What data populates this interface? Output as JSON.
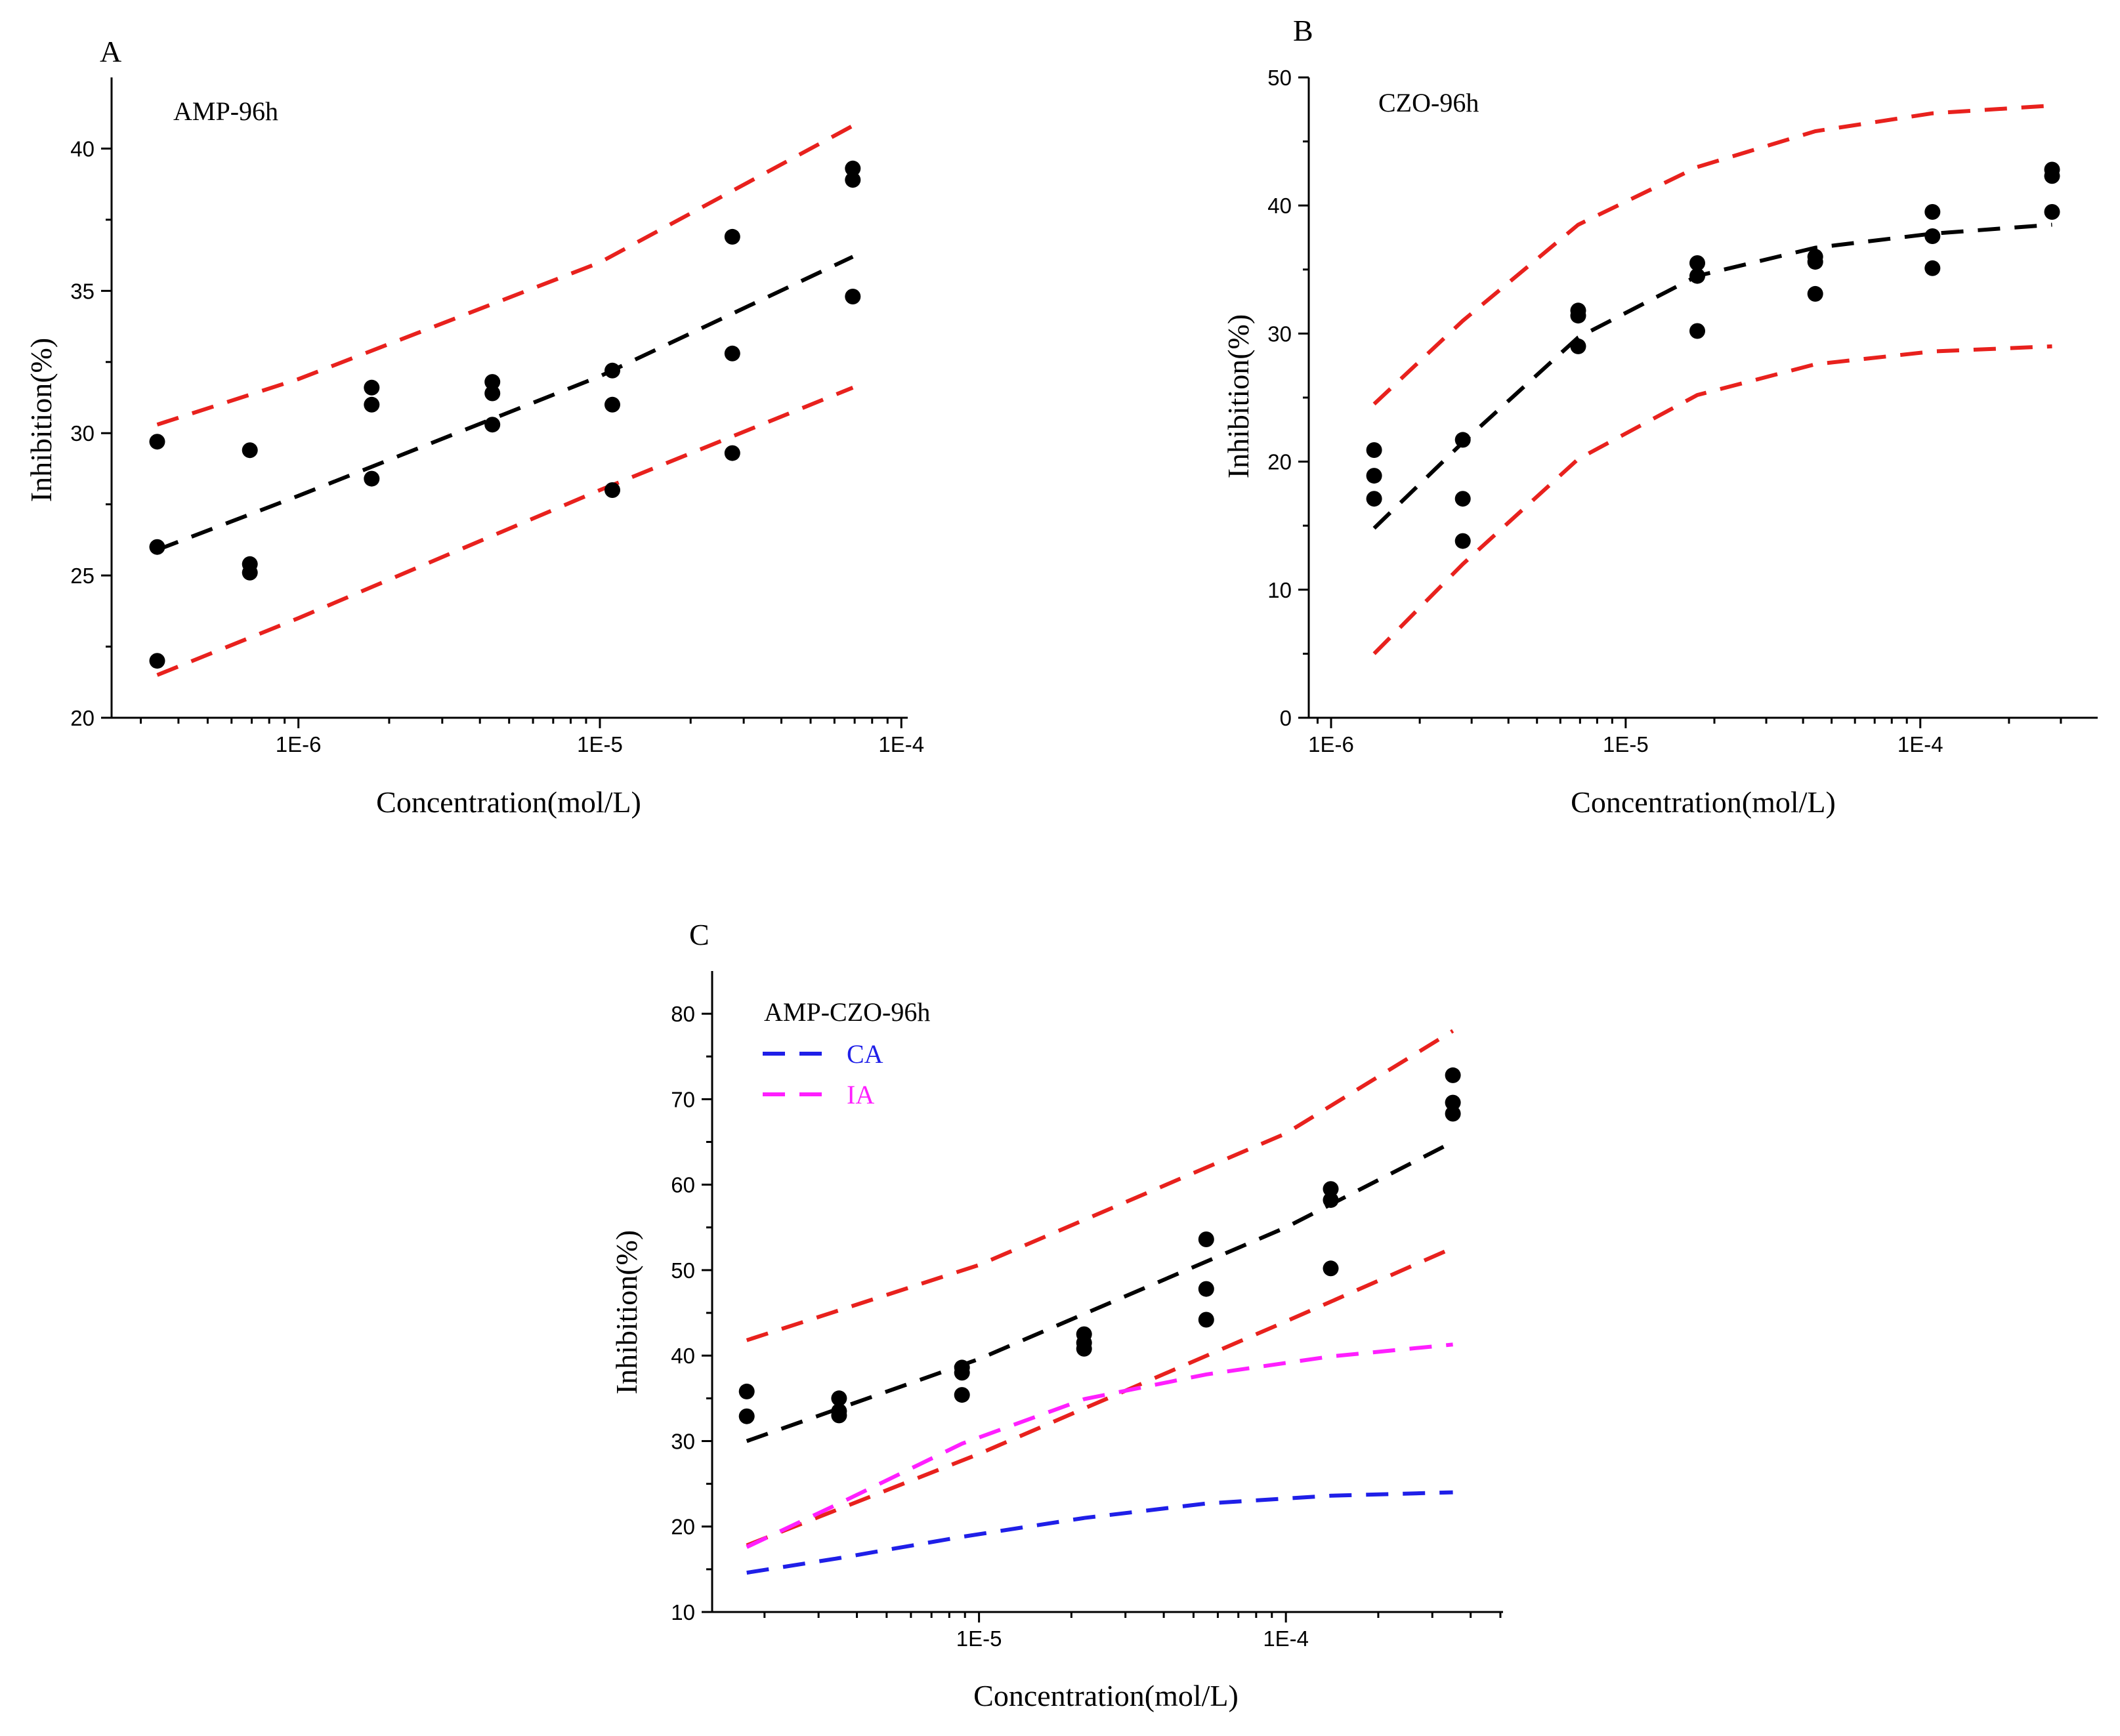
{
  "chart_data": [
    {
      "id": "A",
      "type": "scatter",
      "panel_label": "A",
      "title": "AMP-96h",
      "xlabel": "Concentration(mol/L)",
      "ylabel": "Inhibition(%)",
      "xscale": "log",
      "xlim": [
        2.4e-07,
        0.000105
      ],
      "ylim": [
        20,
        42.5
      ],
      "xticks": [
        1e-06,
        1e-05,
        0.0001
      ],
      "xtick_labels": [
        "1E-6",
        "1E-5",
        "1E-4"
      ],
      "yticks": [
        20,
        25,
        30,
        35,
        40
      ],
      "ytick_labels": [
        "20",
        "25",
        "30",
        "35",
        "40"
      ],
      "points": [
        [
          3.4e-07,
          29.7
        ],
        [
          3.4e-07,
          26.0
        ],
        [
          3.4e-07,
          22.0
        ],
        [
          6.9e-07,
          29.4
        ],
        [
          6.9e-07,
          25.4
        ],
        [
          6.9e-07,
          25.1
        ],
        [
          1.75e-06,
          31.6
        ],
        [
          1.75e-06,
          31.0
        ],
        [
          1.75e-06,
          28.4
        ],
        [
          4.4e-06,
          31.8
        ],
        [
          4.4e-06,
          31.4
        ],
        [
          4.4e-06,
          30.3
        ],
        [
          1.1e-05,
          32.2
        ],
        [
          1.1e-05,
          31.0
        ],
        [
          1.1e-05,
          28.0
        ],
        [
          2.75e-05,
          36.9
        ],
        [
          2.75e-05,
          32.8
        ],
        [
          2.75e-05,
          29.3
        ],
        [
          6.9e-05,
          39.3
        ],
        [
          6.9e-05,
          38.9
        ],
        [
          6.9e-05,
          34.8
        ]
      ],
      "series": [
        {
          "name": "fit",
          "color": "#000000",
          "x": [
            3.4e-07,
            1e-06,
            1e-05,
            6.9e-05
          ],
          "y": [
            25.9,
            27.8,
            32.0,
            36.2
          ]
        },
        {
          "name": "upper",
          "color": "#e8211d",
          "x": [
            3.4e-07,
            1e-06,
            1e-05,
            6.9e-05
          ],
          "y": [
            30.3,
            31.9,
            36.0,
            40.8
          ]
        },
        {
          "name": "lower",
          "color": "#e8211d",
          "x": [
            3.4e-07,
            1e-06,
            1e-05,
            6.9e-05
          ],
          "y": [
            21.5,
            23.5,
            28.0,
            31.6
          ]
        }
      ]
    },
    {
      "id": "B",
      "type": "scatter",
      "panel_label": "B",
      "title": "CZO-96h",
      "xlabel": "Concentration(mol/L)",
      "ylabel": "Inhibition(%)",
      "xscale": "log",
      "xlim": [
        8.4e-07,
        0.0004
      ],
      "ylim": [
        0,
        50
      ],
      "xticks": [
        1e-06,
        1e-05,
        0.0001
      ],
      "xtick_labels": [
        "1E-6",
        "1E-5",
        "1E-4"
      ],
      "yticks": [
        0,
        10,
        20,
        30,
        40,
        50
      ],
      "ytick_labels": [
        "0",
        "10",
        "20",
        "30",
        "40",
        "50"
      ],
      "points": [
        [
          1.4e-06,
          20.9
        ],
        [
          1.4e-06,
          18.9
        ],
        [
          1.4e-06,
          17.1
        ],
        [
          2.8e-06,
          21.7
        ],
        [
          2.8e-06,
          17.1
        ],
        [
          2.8e-06,
          13.8
        ],
        [
          6.9e-06,
          31.8
        ],
        [
          6.9e-06,
          31.4
        ],
        [
          6.9e-06,
          29.0
        ],
        [
          1.75e-05,
          35.5
        ],
        [
          1.75e-05,
          34.5
        ],
        [
          1.75e-05,
          30.2
        ],
        [
          4.4e-05,
          36.0
        ],
        [
          4.4e-05,
          35.6
        ],
        [
          4.4e-05,
          33.1
        ],
        [
          0.00011,
          39.5
        ],
        [
          0.00011,
          37.6
        ],
        [
          0.00011,
          35.1
        ],
        [
          0.00028,
          42.8
        ],
        [
          0.00028,
          42.3
        ],
        [
          0.00028,
          39.5
        ]
      ],
      "series": [
        {
          "name": "fit",
          "color": "#000000",
          "x": [
            1.4e-06,
            2.8e-06,
            6.9e-06,
            1.75e-05,
            4.4e-05,
            0.00011,
            0.00028
          ],
          "y": [
            14.8,
            21.5,
            29.7,
            34.5,
            36.7,
            37.8,
            38.5
          ]
        },
        {
          "name": "upper",
          "color": "#e8211d",
          "x": [
            1.4e-06,
            2.8e-06,
            6.9e-06,
            1.75e-05,
            4.4e-05,
            0.00011,
            0.00028
          ],
          "y": [
            24.5,
            31.0,
            38.5,
            43.0,
            45.8,
            47.2,
            47.8
          ]
        },
        {
          "name": "lower",
          "color": "#e8211d",
          "x": [
            1.4e-06,
            2.8e-06,
            6.9e-06,
            1.75e-05,
            4.4e-05,
            0.00011,
            0.00028
          ],
          "y": [
            5.0,
            12.0,
            20.2,
            25.2,
            27.6,
            28.6,
            29.0
          ]
        }
      ]
    },
    {
      "id": "C",
      "type": "scatter",
      "panel_label": "C",
      "title": "AMP-CZO-96h",
      "xlabel": "Concentration(mol/L)",
      "ylabel": "Inhibition(%)",
      "xscale": "log",
      "xlim": [
        1.35e-06,
        0.00051
      ],
      "ylim": [
        10,
        85
      ],
      "xticks": [
        1e-05,
        0.0001
      ],
      "xtick_labels": [
        "1E-5",
        "1E-4"
      ],
      "yticks": [
        10,
        20,
        30,
        40,
        50,
        60,
        70,
        80
      ],
      "ytick_labels": [
        "10",
        "20",
        "30",
        "40",
        "50",
        "60",
        "70",
        "80"
      ],
      "legend": [
        {
          "name": "CA",
          "color": "#1f1fe8"
        },
        {
          "name": "IA",
          "color": "#ff1fff"
        }
      ],
      "points": [
        [
          1.75e-06,
          35.8
        ],
        [
          1.75e-06,
          32.9
        ],
        [
          3.5e-06,
          35.0
        ],
        [
          3.5e-06,
          33.5
        ],
        [
          3.5e-06,
          33.0
        ],
        [
          8.8e-06,
          38.6
        ],
        [
          8.8e-06,
          38.0
        ],
        [
          8.8e-06,
          35.4
        ],
        [
          2.2e-05,
          42.5
        ],
        [
          2.2e-05,
          41.5
        ],
        [
          2.2e-05,
          40.8
        ],
        [
          5.5e-05,
          53.6
        ],
        [
          5.5e-05,
          47.8
        ],
        [
          5.5e-05,
          44.2
        ],
        [
          0.00014,
          59.5
        ],
        [
          0.00014,
          58.2
        ],
        [
          0.00014,
          50.2
        ],
        [
          0.00035,
          72.8
        ],
        [
          0.00035,
          69.6
        ],
        [
          0.00035,
          68.3
        ]
      ],
      "series": [
        {
          "name": "fit",
          "color": "#000000",
          "x": [
            1.75e-06,
            1e-05,
            0.0001,
            0.00035
          ],
          "y": [
            30.0,
            39.6,
            55.0,
            65.0
          ]
        },
        {
          "name": "upper",
          "color": "#e8211d",
          "x": [
            1.75e-06,
            1e-05,
            0.0001,
            0.00035
          ],
          "y": [
            41.8,
            50.6,
            66.0,
            78.0
          ]
        },
        {
          "name": "lower",
          "color": "#e8211d",
          "x": [
            1.75e-06,
            1e-05,
            0.0001,
            0.00035
          ],
          "y": [
            17.8,
            28.5,
            44.0,
            52.6
          ]
        },
        {
          "name": "CA",
          "color": "#1f1fe8",
          "x": [
            1.75e-06,
            3.5e-06,
            8.8e-06,
            2.2e-05,
            5.5e-05,
            0.00014,
            0.00035
          ],
          "y": [
            14.6,
            16.3,
            18.8,
            21.0,
            22.7,
            23.6,
            24.0
          ]
        },
        {
          "name": "IA",
          "color": "#ff1fff",
          "x": [
            1.75e-06,
            3.5e-06,
            8.8e-06,
            2.2e-05,
            5.5e-05,
            0.00014,
            0.00035
          ],
          "y": [
            17.6,
            22.7,
            29.7,
            34.9,
            37.8,
            39.9,
            41.3
          ]
        }
      ]
    }
  ]
}
